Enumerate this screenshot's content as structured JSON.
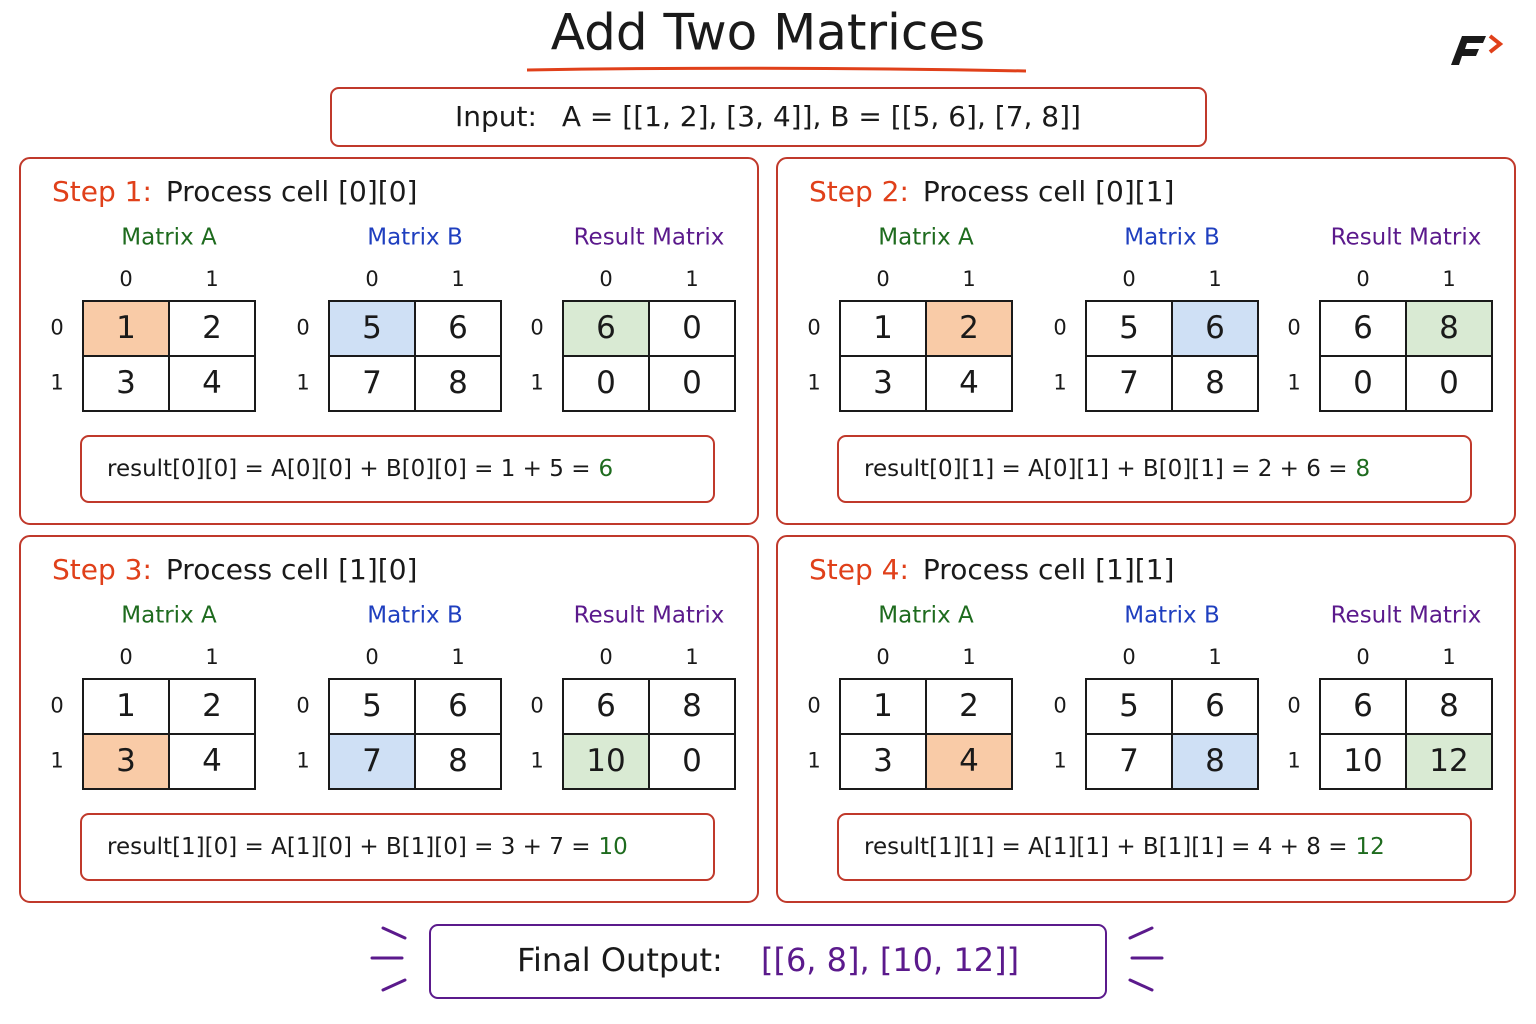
{
  "title": "Add Two Matrices",
  "input": {
    "label": "Input:",
    "text": "A = [[1, 2], [3, 4]], B = [[5, 6], [7, 8]]"
  },
  "matrix_names": [
    "Matrix A",
    "Matrix B",
    "Result Matrix"
  ],
  "matrix_colors": [
    "#1e6b1e",
    "#1f3fbf",
    "#5b1a8c"
  ],
  "highlight_colors": [
    "#f9cba7",
    "#cfe0f5",
    "#d9ead3"
  ],
  "indices": [
    0,
    1
  ],
  "steps": [
    {
      "label": "Step 1:",
      "text": "Process cell [0][0]",
      "cell": [
        0,
        0
      ],
      "matrices": [
        [
          [
            1,
            2
          ],
          [
            3,
            4
          ]
        ],
        [
          [
            5,
            6
          ],
          [
            7,
            8
          ]
        ],
        [
          [
            6,
            0
          ],
          [
            0,
            0
          ]
        ]
      ],
      "formula": "result[0][0] = A[0][0] + B[0][0] = 1 + 5 =",
      "result": 6
    },
    {
      "label": "Step 2:",
      "text": "Process cell [0][1]",
      "cell": [
        0,
        1
      ],
      "matrices": [
        [
          [
            1,
            2
          ],
          [
            3,
            4
          ]
        ],
        [
          [
            5,
            6
          ],
          [
            7,
            8
          ]
        ],
        [
          [
            6,
            8
          ],
          [
            0,
            0
          ]
        ]
      ],
      "formula": "result[0][1] = A[0][1] + B[0][1] = 2 + 6 =",
      "result": 8
    },
    {
      "label": "Step 3:",
      "text": "Process cell [1][0]",
      "cell": [
        1,
        0
      ],
      "matrices": [
        [
          [
            1,
            2
          ],
          [
            3,
            4
          ]
        ],
        [
          [
            5,
            6
          ],
          [
            7,
            8
          ]
        ],
        [
          [
            6,
            8
          ],
          [
            10,
            0
          ]
        ]
      ],
      "formula": "result[1][0] = A[1][0] + B[1][0] = 3 + 7 =",
      "result": 10
    },
    {
      "label": "Step 4:",
      "text": "Process cell [1][1]",
      "cell": [
        1,
        1
      ],
      "matrices": [
        [
          [
            1,
            2
          ],
          [
            3,
            4
          ]
        ],
        [
          [
            5,
            6
          ],
          [
            7,
            8
          ]
        ],
        [
          [
            6,
            8
          ],
          [
            10,
            12
          ]
        ]
      ],
      "formula": "result[1][1] = A[1][1] + B[1][1] = 4 + 8 =",
      "result": 12
    }
  ],
  "output": {
    "label": "Final Output:",
    "value": "[[6, 8], [10, 12]]"
  }
}
